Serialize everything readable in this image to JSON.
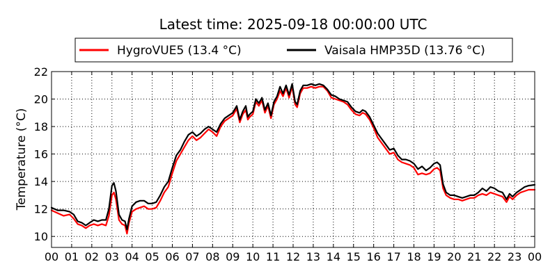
{
  "chart_data": {
    "type": "line",
    "title": "Latest time: 2025-09-18 00:00:00 UTC",
    "xlabel": "",
    "ylabel": "Temperature (°C)",
    "xlim": [
      0,
      24
    ],
    "ylim": [
      9.2,
      22
    ],
    "x_ticks": [
      0,
      1,
      2,
      3,
      4,
      5,
      6,
      7,
      8,
      9,
      10,
      11,
      12,
      13,
      14,
      15,
      16,
      17,
      18,
      19,
      20,
      21,
      22,
      23,
      24
    ],
    "x_tick_labels": [
      "00",
      "01",
      "02",
      "03",
      "04",
      "05",
      "06",
      "07",
      "08",
      "09",
      "10",
      "11",
      "12",
      "13",
      "14",
      "15",
      "16",
      "17",
      "18",
      "19",
      "20",
      "21",
      "22",
      "23",
      "00"
    ],
    "y_ticks": [
      10,
      12,
      14,
      16,
      18,
      20,
      22
    ],
    "y_tick_labels": [
      "10",
      "12",
      "14",
      "16",
      "18",
      "20",
      "22"
    ],
    "grid": true,
    "legend_position": "top-center",
    "series": [
      {
        "name": "HygroVUE5 (13.4 °C)",
        "color": "#ff0000",
        "points": [
          [
            0.0,
            11.9
          ],
          [
            0.3,
            11.7
          ],
          [
            0.6,
            11.5
          ],
          [
            0.9,
            11.6
          ],
          [
            1.1,
            11.3
          ],
          [
            1.3,
            10.9
          ],
          [
            1.5,
            10.8
          ],
          [
            1.7,
            10.6
          ],
          [
            1.9,
            10.8
          ],
          [
            2.1,
            10.9
          ],
          [
            2.3,
            10.8
          ],
          [
            2.5,
            10.9
          ],
          [
            2.7,
            10.8
          ],
          [
            2.85,
            11.5
          ],
          [
            3.0,
            13.0
          ],
          [
            3.1,
            13.2
          ],
          [
            3.2,
            12.7
          ],
          [
            3.35,
            11.2
          ],
          [
            3.5,
            10.9
          ],
          [
            3.65,
            10.8
          ],
          [
            3.75,
            10.2
          ],
          [
            3.85,
            11.0
          ],
          [
            4.0,
            11.8
          ],
          [
            4.2,
            12.0
          ],
          [
            4.4,
            12.1
          ],
          [
            4.6,
            12.2
          ],
          [
            4.8,
            12.0
          ],
          [
            5.0,
            12.0
          ],
          [
            5.2,
            12.1
          ],
          [
            5.4,
            12.6
          ],
          [
            5.6,
            13.2
          ],
          [
            5.8,
            13.6
          ],
          [
            6.0,
            14.6
          ],
          [
            6.2,
            15.5
          ],
          [
            6.4,
            16.0
          ],
          [
            6.6,
            16.5
          ],
          [
            6.8,
            17.0
          ],
          [
            7.0,
            17.3
          ],
          [
            7.2,
            17.0
          ],
          [
            7.4,
            17.2
          ],
          [
            7.6,
            17.5
          ],
          [
            7.8,
            17.8
          ],
          [
            8.0,
            17.6
          ],
          [
            8.2,
            17.3
          ],
          [
            8.4,
            18.0
          ],
          [
            8.6,
            18.4
          ],
          [
            8.8,
            18.6
          ],
          [
            9.0,
            18.8
          ],
          [
            9.2,
            19.3
          ],
          [
            9.35,
            18.3
          ],
          [
            9.5,
            18.9
          ],
          [
            9.65,
            19.2
          ],
          [
            9.75,
            18.5
          ],
          [
            9.85,
            18.7
          ],
          [
            10.0,
            18.9
          ],
          [
            10.15,
            19.8
          ],
          [
            10.3,
            19.5
          ],
          [
            10.45,
            19.9
          ],
          [
            10.6,
            19.0
          ],
          [
            10.75,
            19.5
          ],
          [
            10.9,
            18.6
          ],
          [
            11.05,
            19.6
          ],
          [
            11.2,
            20.0
          ],
          [
            11.35,
            20.6
          ],
          [
            11.5,
            20.2
          ],
          [
            11.65,
            20.8
          ],
          [
            11.8,
            20.1
          ],
          [
            11.95,
            20.9
          ],
          [
            12.1,
            19.6
          ],
          [
            12.2,
            19.4
          ],
          [
            12.35,
            20.4
          ],
          [
            12.5,
            20.8
          ],
          [
            12.7,
            20.8
          ],
          [
            12.9,
            20.9
          ],
          [
            13.1,
            20.8
          ],
          [
            13.3,
            20.9
          ],
          [
            13.5,
            20.9
          ],
          [
            13.7,
            20.6
          ],
          [
            13.9,
            20.1
          ],
          [
            14.1,
            20.0
          ],
          [
            14.3,
            19.9
          ],
          [
            14.5,
            19.8
          ],
          [
            14.7,
            19.6
          ],
          [
            14.9,
            19.2
          ],
          [
            15.1,
            18.9
          ],
          [
            15.3,
            18.8
          ],
          [
            15.45,
            19.0
          ],
          [
            15.6,
            18.9
          ],
          [
            15.8,
            18.5
          ],
          [
            16.0,
            17.9
          ],
          [
            16.2,
            17.2
          ],
          [
            16.4,
            16.8
          ],
          [
            16.6,
            16.4
          ],
          [
            16.8,
            16.0
          ],
          [
            17.0,
            16.1
          ],
          [
            17.2,
            15.6
          ],
          [
            17.4,
            15.4
          ],
          [
            17.6,
            15.3
          ],
          [
            17.8,
            15.2
          ],
          [
            18.0,
            15.0
          ],
          [
            18.2,
            14.5
          ],
          [
            18.4,
            14.6
          ],
          [
            18.6,
            14.5
          ],
          [
            18.8,
            14.6
          ],
          [
            19.0,
            14.9
          ],
          [
            19.15,
            15.0
          ],
          [
            19.3,
            14.8
          ],
          [
            19.45,
            13.5
          ],
          [
            19.6,
            13.0
          ],
          [
            19.8,
            12.8
          ],
          [
            20.0,
            12.7
          ],
          [
            20.2,
            12.7
          ],
          [
            20.4,
            12.6
          ],
          [
            20.6,
            12.7
          ],
          [
            20.8,
            12.8
          ],
          [
            21.0,
            12.8
          ],
          [
            21.2,
            13.0
          ],
          [
            21.4,
            13.1
          ],
          [
            21.6,
            13.0
          ],
          [
            21.8,
            13.2
          ],
          [
            22.0,
            13.1
          ],
          [
            22.2,
            13.0
          ],
          [
            22.4,
            12.9
          ],
          [
            22.6,
            12.5
          ],
          [
            22.75,
            12.9
          ],
          [
            22.9,
            12.7
          ],
          [
            23.1,
            13.0
          ],
          [
            23.3,
            13.2
          ],
          [
            23.5,
            13.3
          ],
          [
            23.7,
            13.4
          ],
          [
            24.0,
            13.4
          ]
        ]
      },
      {
        "name": "Vaisala HMP35D (13.76 °C)",
        "color": "#000000",
        "points": [
          [
            0.0,
            12.1
          ],
          [
            0.3,
            11.9
          ],
          [
            0.6,
            11.9
          ],
          [
            0.9,
            11.8
          ],
          [
            1.1,
            11.6
          ],
          [
            1.3,
            11.1
          ],
          [
            1.5,
            11.0
          ],
          [
            1.7,
            10.8
          ],
          [
            1.9,
            11.0
          ],
          [
            2.1,
            11.2
          ],
          [
            2.3,
            11.1
          ],
          [
            2.5,
            11.2
          ],
          [
            2.7,
            11.2
          ],
          [
            2.85,
            12.0
          ],
          [
            3.0,
            13.7
          ],
          [
            3.1,
            13.9
          ],
          [
            3.2,
            13.3
          ],
          [
            3.35,
            11.6
          ],
          [
            3.5,
            11.2
          ],
          [
            3.65,
            11.1
          ],
          [
            3.75,
            10.5
          ],
          [
            3.85,
            11.3
          ],
          [
            4.0,
            12.2
          ],
          [
            4.2,
            12.5
          ],
          [
            4.4,
            12.6
          ],
          [
            4.6,
            12.6
          ],
          [
            4.8,
            12.4
          ],
          [
            5.0,
            12.4
          ],
          [
            5.2,
            12.5
          ],
          [
            5.4,
            13.0
          ],
          [
            5.6,
            13.6
          ],
          [
            5.8,
            14.0
          ],
          [
            6.0,
            15.0
          ],
          [
            6.2,
            15.9
          ],
          [
            6.4,
            16.3
          ],
          [
            6.6,
            16.9
          ],
          [
            6.8,
            17.4
          ],
          [
            7.0,
            17.6
          ],
          [
            7.2,
            17.3
          ],
          [
            7.4,
            17.5
          ],
          [
            7.6,
            17.8
          ],
          [
            7.8,
            18.0
          ],
          [
            8.0,
            17.8
          ],
          [
            8.2,
            17.6
          ],
          [
            8.4,
            18.2
          ],
          [
            8.6,
            18.6
          ],
          [
            8.8,
            18.8
          ],
          [
            9.0,
            19.0
          ],
          [
            9.2,
            19.5
          ],
          [
            9.35,
            18.5
          ],
          [
            9.5,
            19.1
          ],
          [
            9.65,
            19.5
          ],
          [
            9.75,
            18.7
          ],
          [
            9.85,
            18.9
          ],
          [
            10.0,
            19.1
          ],
          [
            10.15,
            20.0
          ],
          [
            10.3,
            19.7
          ],
          [
            10.45,
            20.1
          ],
          [
            10.6,
            19.2
          ],
          [
            10.75,
            19.7
          ],
          [
            10.9,
            18.8
          ],
          [
            11.05,
            19.8
          ],
          [
            11.2,
            20.2
          ],
          [
            11.35,
            20.9
          ],
          [
            11.5,
            20.4
          ],
          [
            11.65,
            21.0
          ],
          [
            11.8,
            20.3
          ],
          [
            11.95,
            21.1
          ],
          [
            12.1,
            19.8
          ],
          [
            12.2,
            19.6
          ],
          [
            12.35,
            20.6
          ],
          [
            12.5,
            21.0
          ],
          [
            12.7,
            21.0
          ],
          [
            12.9,
            21.1
          ],
          [
            13.1,
            21.0
          ],
          [
            13.3,
            21.1
          ],
          [
            13.5,
            21.0
          ],
          [
            13.7,
            20.7
          ],
          [
            13.9,
            20.3
          ],
          [
            14.1,
            20.2
          ],
          [
            14.3,
            20.0
          ],
          [
            14.5,
            19.9
          ],
          [
            14.7,
            19.8
          ],
          [
            14.9,
            19.4
          ],
          [
            15.1,
            19.1
          ],
          [
            15.3,
            19.0
          ],
          [
            15.45,
            19.2
          ],
          [
            15.6,
            19.1
          ],
          [
            15.8,
            18.7
          ],
          [
            16.0,
            18.1
          ],
          [
            16.2,
            17.5
          ],
          [
            16.4,
            17.1
          ],
          [
            16.6,
            16.7
          ],
          [
            16.8,
            16.3
          ],
          [
            17.0,
            16.4
          ],
          [
            17.2,
            15.9
          ],
          [
            17.4,
            15.6
          ],
          [
            17.6,
            15.6
          ],
          [
            17.8,
            15.5
          ],
          [
            18.0,
            15.3
          ],
          [
            18.2,
            14.9
          ],
          [
            18.4,
            15.1
          ],
          [
            18.6,
            14.8
          ],
          [
            18.8,
            15.0
          ],
          [
            19.0,
            15.3
          ],
          [
            19.15,
            15.4
          ],
          [
            19.3,
            15.2
          ],
          [
            19.45,
            13.8
          ],
          [
            19.6,
            13.2
          ],
          [
            19.8,
            13.0
          ],
          [
            20.0,
            13.0
          ],
          [
            20.2,
            12.9
          ],
          [
            20.4,
            12.8
          ],
          [
            20.6,
            12.9
          ],
          [
            20.8,
            13.0
          ],
          [
            21.0,
            13.0
          ],
          [
            21.2,
            13.2
          ],
          [
            21.4,
            13.5
          ],
          [
            21.6,
            13.3
          ],
          [
            21.8,
            13.6
          ],
          [
            22.0,
            13.5
          ],
          [
            22.2,
            13.3
          ],
          [
            22.4,
            13.2
          ],
          [
            22.6,
            12.7
          ],
          [
            22.75,
            13.1
          ],
          [
            22.9,
            12.9
          ],
          [
            23.1,
            13.2
          ],
          [
            23.3,
            13.4
          ],
          [
            23.5,
            13.6
          ],
          [
            23.7,
            13.7
          ],
          [
            24.0,
            13.76
          ]
        ]
      }
    ]
  }
}
